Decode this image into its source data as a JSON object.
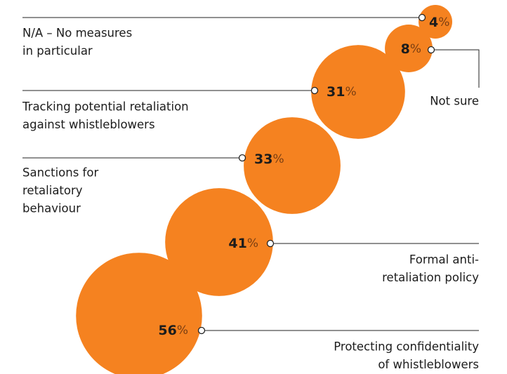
{
  "chart_data": {
    "type": "bubble",
    "categories": [
      [
        "N/A – No measures",
        "in particular"
      ],
      [
        "Not sure"
      ],
      [
        "Tracking potential retaliation",
        "against whistleblowers"
      ],
      [
        "Sanctions for",
        "retaliatory",
        "behaviour"
      ],
      [
        "Formal anti-",
        "retaliation policy"
      ],
      [
        "Protecting confidentiality",
        "of whistleblowers"
      ]
    ],
    "values": [
      4,
      8,
      31,
      33,
      41,
      56
    ],
    "unit": "%",
    "color": "#f58220"
  }
}
